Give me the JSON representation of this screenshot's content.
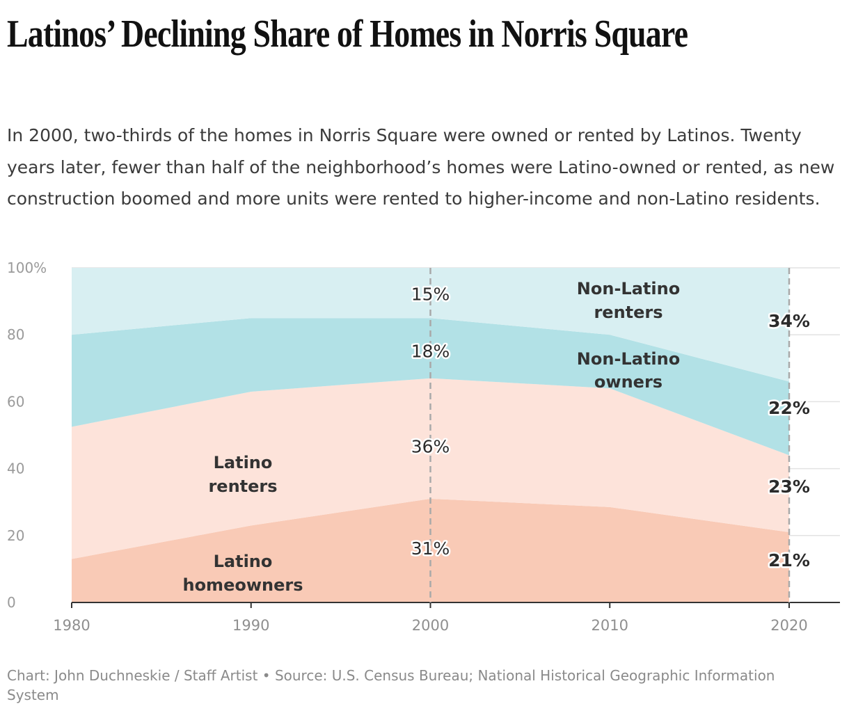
{
  "title": "Latinos’ Declining Share of Homes in Norris Square",
  "subtitle": "In 2000, two-thirds of the homes in Norris Square were owned or rented by Latinos. Twenty years later, fewer than half of the neighborhood’s homes were Latino-owned or rented, as new construction boomed and more units were rented to higher-income and non-Latino residents.",
  "footer": "Chart: John Duchneskie / Staff Artist • Source: U.S. Census Bureau; National Historical Geographic Information System",
  "colors": {
    "latino_homeowners": "#f9cab6",
    "latino_renters": "#fde3da",
    "non_latino_owners": "#b2e1e6",
    "non_latino_renters": "#d8eff2",
    "grid": "#e2e2e2",
    "axis_text": "#9a9a9a",
    "marker": "#a9a9a9"
  },
  "chart_data": {
    "type": "area",
    "stacked": true,
    "x": [
      1980,
      1990,
      2000,
      2010,
      2020
    ],
    "ylim": [
      0,
      100
    ],
    "yticks": [
      0,
      20,
      40,
      60,
      80,
      100
    ],
    "ytick_labels": [
      "0",
      "20",
      "40",
      "60",
      "80",
      "100%"
    ],
    "xtick_labels": [
      "1980",
      "1990",
      "2000",
      "2010",
      "2020"
    ],
    "series": [
      {
        "key": "latino_homeowners",
        "name": "Latino homeowners",
        "label_lines": [
          "Latino",
          "homeowners"
        ],
        "values": [
          13,
          23,
          31,
          28.5,
          21
        ]
      },
      {
        "key": "latino_renters",
        "name": "Latino renters",
        "label_lines": [
          "Latino",
          "renters"
        ],
        "values": [
          39.5,
          40,
          36,
          35.5,
          23
        ]
      },
      {
        "key": "non_latino_owners",
        "name": "Non-Latino owners",
        "label_lines": [
          "Non-Latino",
          "owners"
        ],
        "values": [
          27.5,
          22,
          18,
          16,
          22
        ]
      },
      {
        "key": "non_latino_renters",
        "name": "Non-Latino renters",
        "label_lines": [
          "Non-Latino",
          "renters"
        ],
        "values": [
          20,
          15,
          15,
          20,
          34
        ]
      }
    ],
    "markers": [
      {
        "year": 2000,
        "bold": false,
        "labels": [
          "31%",
          "36%",
          "18%",
          "15%"
        ]
      },
      {
        "year": 2020,
        "bold": true,
        "labels": [
          "21%",
          "23%",
          "22%",
          "34%"
        ]
      }
    ]
  }
}
